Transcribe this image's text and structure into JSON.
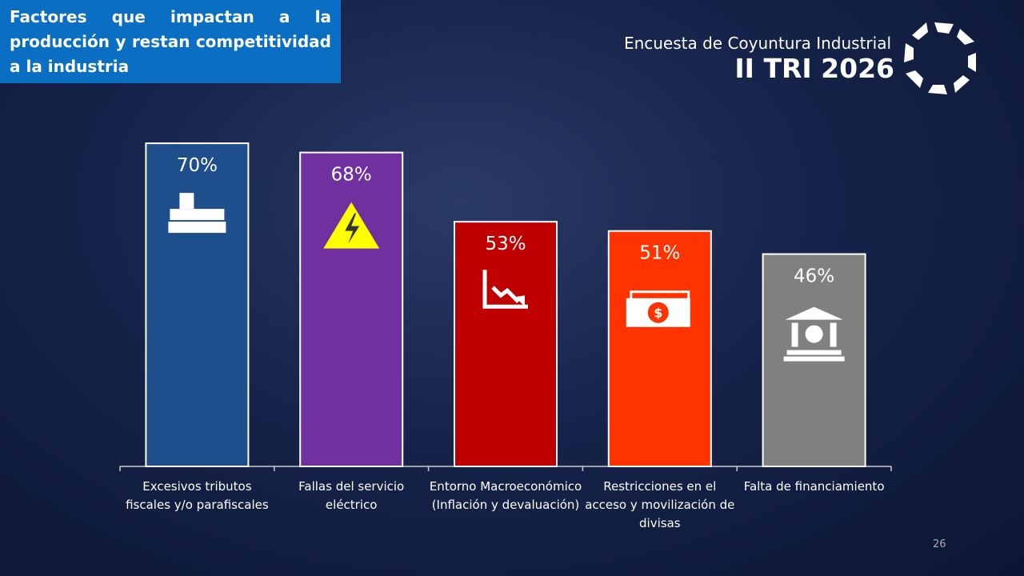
{
  "header": {
    "survey": "Encuesta de Coyuntura Industrial",
    "period": "II TRI 2026"
  },
  "chart_data": {
    "type": "bar",
    "title": "Factores que impactan a la producción y restan competitividad a la industria",
    "categories": [
      "Excesivos tributos fiscales y/o parafiscales",
      "Fallas del servicio eléctrico",
      "Entorno Macroeconómico (Inflación y devaluación)",
      "Restricciones en el acceso y movilización de divisas",
      "Falta de financiamiento"
    ],
    "values": [
      70,
      68,
      53,
      51,
      46
    ],
    "value_labels": [
      "70%",
      "68%",
      "53%",
      "51%",
      "46%"
    ],
    "colors": [
      "#1f4e8c",
      "#7030a0",
      "#c00000",
      "#ff3300",
      "#808080"
    ]
  },
  "footer": {
    "page": "26"
  }
}
